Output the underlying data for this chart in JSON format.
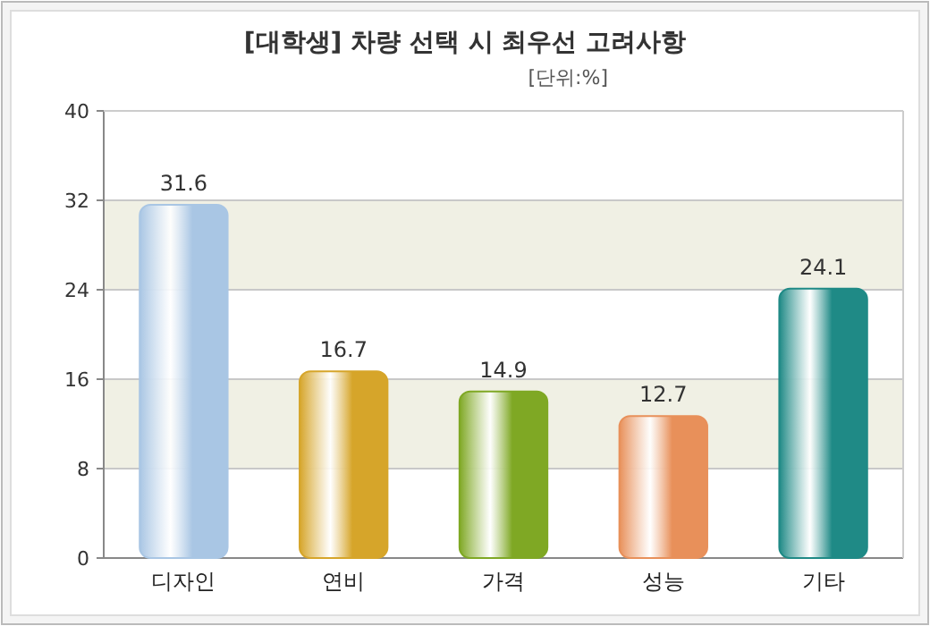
{
  "chart_data": {
    "type": "bar",
    "title": "[대학생] 차량 선택 시 최우선 고려사항",
    "subtitle": "[단위:%]",
    "categories": [
      "디자인",
      "연비",
      "가격",
      "성능",
      "기타"
    ],
    "values": [
      31.6,
      16.7,
      14.9,
      12.7,
      24.1
    ],
    "colors": [
      "#a9c6e4",
      "#d6a52a",
      "#7fa824",
      "#e8905a",
      "#1f8a86"
    ],
    "ylim": [
      0,
      40
    ],
    "yticks": [
      0,
      8,
      16,
      24,
      32,
      40
    ],
    "grid": "y",
    "data_labels": true,
    "bands": [
      {
        "axis": "y",
        "from": 8,
        "to": 16,
        "color": "#f0f0e4"
      },
      {
        "axis": "y",
        "from": 24,
        "to": 32,
        "color": "#f0f0e4"
      }
    ]
  }
}
